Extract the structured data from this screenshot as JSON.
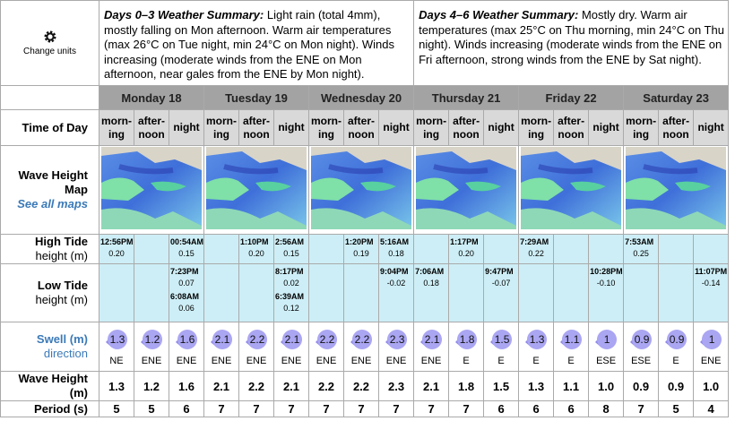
{
  "settings": {
    "label": "Change units"
  },
  "summaries": [
    {
      "label": "Days 0–3 Weather Summary:",
      "text": "Light rain (total 4mm), mostly falling on Mon afternoon. Warm air temperatures (max 26°C on Tue night, min 24°C on Mon night). Winds increasing (moderate winds from the ENE on Mon afternoon, near gales from the ENE by Mon night)."
    },
    {
      "label": "Days 4–6 Weather Summary:",
      "text": "Mostly dry. Warm air temperatures (max 25°C on Thu morning, min 24°C on Thu night). Winds increasing (moderate winds from the ENE on Fri afternoon, strong winds from the ENE by Sat night)."
    }
  ],
  "days": [
    "Monday 18",
    "Tuesday 19",
    "Wednesday 20",
    "Thursday 21",
    "Friday 22",
    "Saturday 23"
  ],
  "periods": [
    "morn-\ning",
    "after-\nnoon",
    "night"
  ],
  "labels": {
    "time": "Time of Day",
    "map": "Wave Height Map",
    "map_link": "See all maps",
    "high_tide": "High Tide",
    "tide_unit": "height (m)",
    "low_tide": "Low Tide",
    "swell": "Swell (m)",
    "direction": "direction",
    "wave": "Wave Height (m)",
    "period": "Period (s)"
  },
  "high_tide": [
    [
      {
        "time": "12:56PM",
        "height": "0.20"
      }
    ],
    [],
    [
      {
        "time": "00:54AM",
        "height": "0.15"
      }
    ],
    [],
    [
      {
        "time": "1:10PM",
        "height": "0.20"
      }
    ],
    [
      {
        "time": "2:56AM",
        "height": "0.15"
      }
    ],
    [],
    [
      {
        "time": "1:20PM",
        "height": "0.19"
      }
    ],
    [
      {
        "time": "5:16AM",
        "height": "0.18"
      }
    ],
    [],
    [
      {
        "time": "1:17PM",
        "height": "0.20"
      }
    ],
    [],
    [
      {
        "time": "7:29AM",
        "height": "0.22"
      }
    ],
    [],
    [],
    [
      {
        "time": "7:53AM",
        "height": "0.25"
      }
    ],
    [],
    []
  ],
  "low_tide": [
    [],
    [],
    [
      {
        "time": "7:23PM",
        "height": "0.07"
      },
      {
        "time": "6:08AM",
        "height": "0.06"
      }
    ],
    [],
    [],
    [
      {
        "time": "8:17PM",
        "height": "0.02"
      },
      {
        "time": "6:39AM",
        "height": "0.12"
      }
    ],
    [],
    [],
    [
      {
        "time": "9:04PM",
        "height": "-0.02"
      }
    ],
    [
      {
        "time": "7:06AM",
        "height": "0.18"
      }
    ],
    [],
    [
      {
        "time": "9:47PM",
        "height": "-0.07"
      }
    ],
    [],
    [],
    [
      {
        "time": "10:28PM",
        "height": "-0.10"
      }
    ],
    [],
    [],
    [
      {
        "time": "11:07PM",
        "height": "-0.14"
      }
    ]
  ],
  "swell": [
    {
      "height": "1.3",
      "direction": "NE"
    },
    {
      "height": "1.2",
      "direction": "ENE"
    },
    {
      "height": "1.6",
      "direction": "ENE"
    },
    {
      "height": "2.1",
      "direction": "ENE"
    },
    {
      "height": "2.2",
      "direction": "ENE"
    },
    {
      "height": "2.1",
      "direction": "ENE"
    },
    {
      "height": "2.2",
      "direction": "ENE"
    },
    {
      "height": "2.2",
      "direction": "ENE"
    },
    {
      "height": "2.3",
      "direction": "ENE"
    },
    {
      "height": "2.1",
      "direction": "ENE"
    },
    {
      "height": "1.8",
      "direction": "E"
    },
    {
      "height": "1.5",
      "direction": "E"
    },
    {
      "height": "1.3",
      "direction": "E"
    },
    {
      "height": "1.1",
      "direction": "E"
    },
    {
      "height": "1",
      "direction": "ESE"
    },
    {
      "height": "0.9",
      "direction": "ESE"
    },
    {
      "height": "0.9",
      "direction": "E"
    },
    {
      "height": "1",
      "direction": "ENE"
    }
  ],
  "wave_height": [
    "1.3",
    "1.2",
    "1.6",
    "2.1",
    "2.2",
    "2.1",
    "2.2",
    "2.2",
    "2.3",
    "2.1",
    "1.8",
    "1.5",
    "1.3",
    "1.1",
    "1.0",
    "0.9",
    "0.9",
    "1.0"
  ],
  "period": [
    "5",
    "5",
    "6",
    "7",
    "7",
    "7",
    "7",
    "7",
    "7",
    "7",
    "7",
    "6",
    "6",
    "6",
    "8",
    "7",
    "5",
    "4"
  ]
}
